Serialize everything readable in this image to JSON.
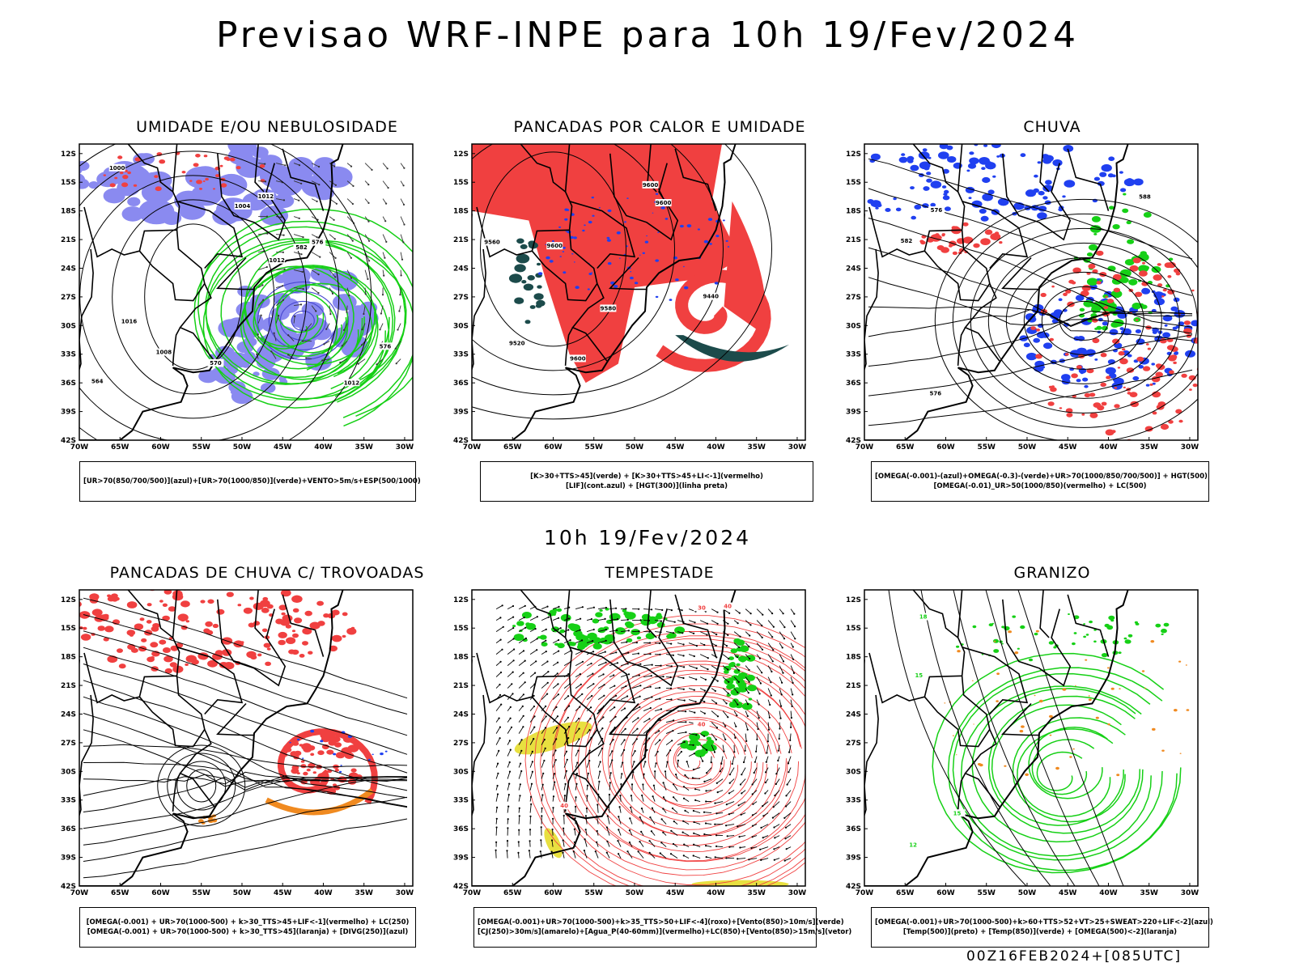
{
  "title": "Previsao WRF-INPE  para 10h 19/Fev/2024",
  "mid_time": "10h 19/Fev/2024",
  "footer": "00Z16FEB2024+[085UTC]",
  "axes": {
    "lat_labels": [
      "12S",
      "15S",
      "18S",
      "21S",
      "24S",
      "27S",
      "30S",
      "33S",
      "36S",
      "39S",
      "42S"
    ],
    "lon_labels": [
      "70W",
      "65W",
      "60W",
      "55W",
      "50W",
      "45W",
      "40W",
      "35W",
      "30W"
    ]
  },
  "colors": {
    "blue_shade": "#8a8af0",
    "green": "#16d016",
    "red": "#f04040",
    "dark_teal": "#1c4b4b",
    "blue": "#2040f0",
    "orange": "#f08a20",
    "yellow": "#e8e040",
    "black": "#000000"
  },
  "panels": [
    {
      "id": "umidade",
      "title": "UMIDADE E/OU NEBULOSIDADE",
      "legend": [
        "[UR>70(850/700/500)](azul)+[UR>70(1000/850)](verde)+VENTO>5m/s+ESP(500/1000)"
      ],
      "contour_labels": [
        "1012",
        "1012",
        "1004",
        "1008",
        "1012",
        "1016",
        "576",
        "570",
        "576",
        "564",
        "582",
        "1000"
      ]
    },
    {
      "id": "pancadas-calor",
      "title": "PANCADAS POR CALOR E UMIDADE",
      "legend": [
        "[K>30+TTS>45](verde)  +  [K>30+TTS>45+LI<-1](vermelho)",
        "[LIF](cont.azul)  +  [HGT(300)](linha preta)"
      ],
      "contour_labels": [
        "9560",
        "9580",
        "9600",
        "9600",
        "9520",
        "9600",
        "9440",
        "9600"
      ]
    },
    {
      "id": "chuva",
      "title": "CHUVA",
      "legend": [
        "[OMEGA(-0.001)-(azul)+OMEGA(-0.3)-(verde)+UR>70(1000/850/700/500)]  +  HGT(500)",
        "[OMEGA(-0.01)_UR>50(1000/850)(vermelho)  +  LC(500)"
      ],
      "contour_labels": [
        "582",
        "576",
        "576",
        "588"
      ]
    },
    {
      "id": "trovoadas",
      "title": "PANCADAS DE CHUVA C/ TROVOADAS",
      "legend": [
        "[OMEGA(-0.001)  +  UR>70(1000-500)  +  k>30_TTS>45+LIF<-1](vermelho)  +  LC(250)",
        "[OMEGA(-0.001)  +  UR>70(1000-500)  +  k>30_TTS>45](laranja)  +  [DIVG(250)](azul)"
      ],
      "contour_labels": []
    },
    {
      "id": "tempestade",
      "title": "TEMPESTADE",
      "legend": [
        "[OMEGA(-0.001)+UR>70(1000-500)+k>35_TTS>50+LIF<-4](roxo)+[Vento(850)>10m/s](verde)",
        "[CJ(250)>30m/s](amarelo)+[Agua_P(40-60mm)](vermelho)+LC(850)+[Vento(850)>15m/s](vetor)"
      ],
      "contour_labels": [
        "40",
        "40",
        "40",
        "30"
      ]
    },
    {
      "id": "granizo",
      "title": "GRANIZO",
      "legend": [
        "[OMEGA(-0.001)+UR>70(1000-500)+k>60+TTS>52+VT>25+SWEAT>220+LIF<-2](azul)",
        "[Temp(500)](preto)  +  [Temp(850)](verde)  +  [OMEGA(500)<-2](laranja)"
      ],
      "contour_labels": [
        "15",
        "18",
        "15",
        "12"
      ]
    }
  ]
}
